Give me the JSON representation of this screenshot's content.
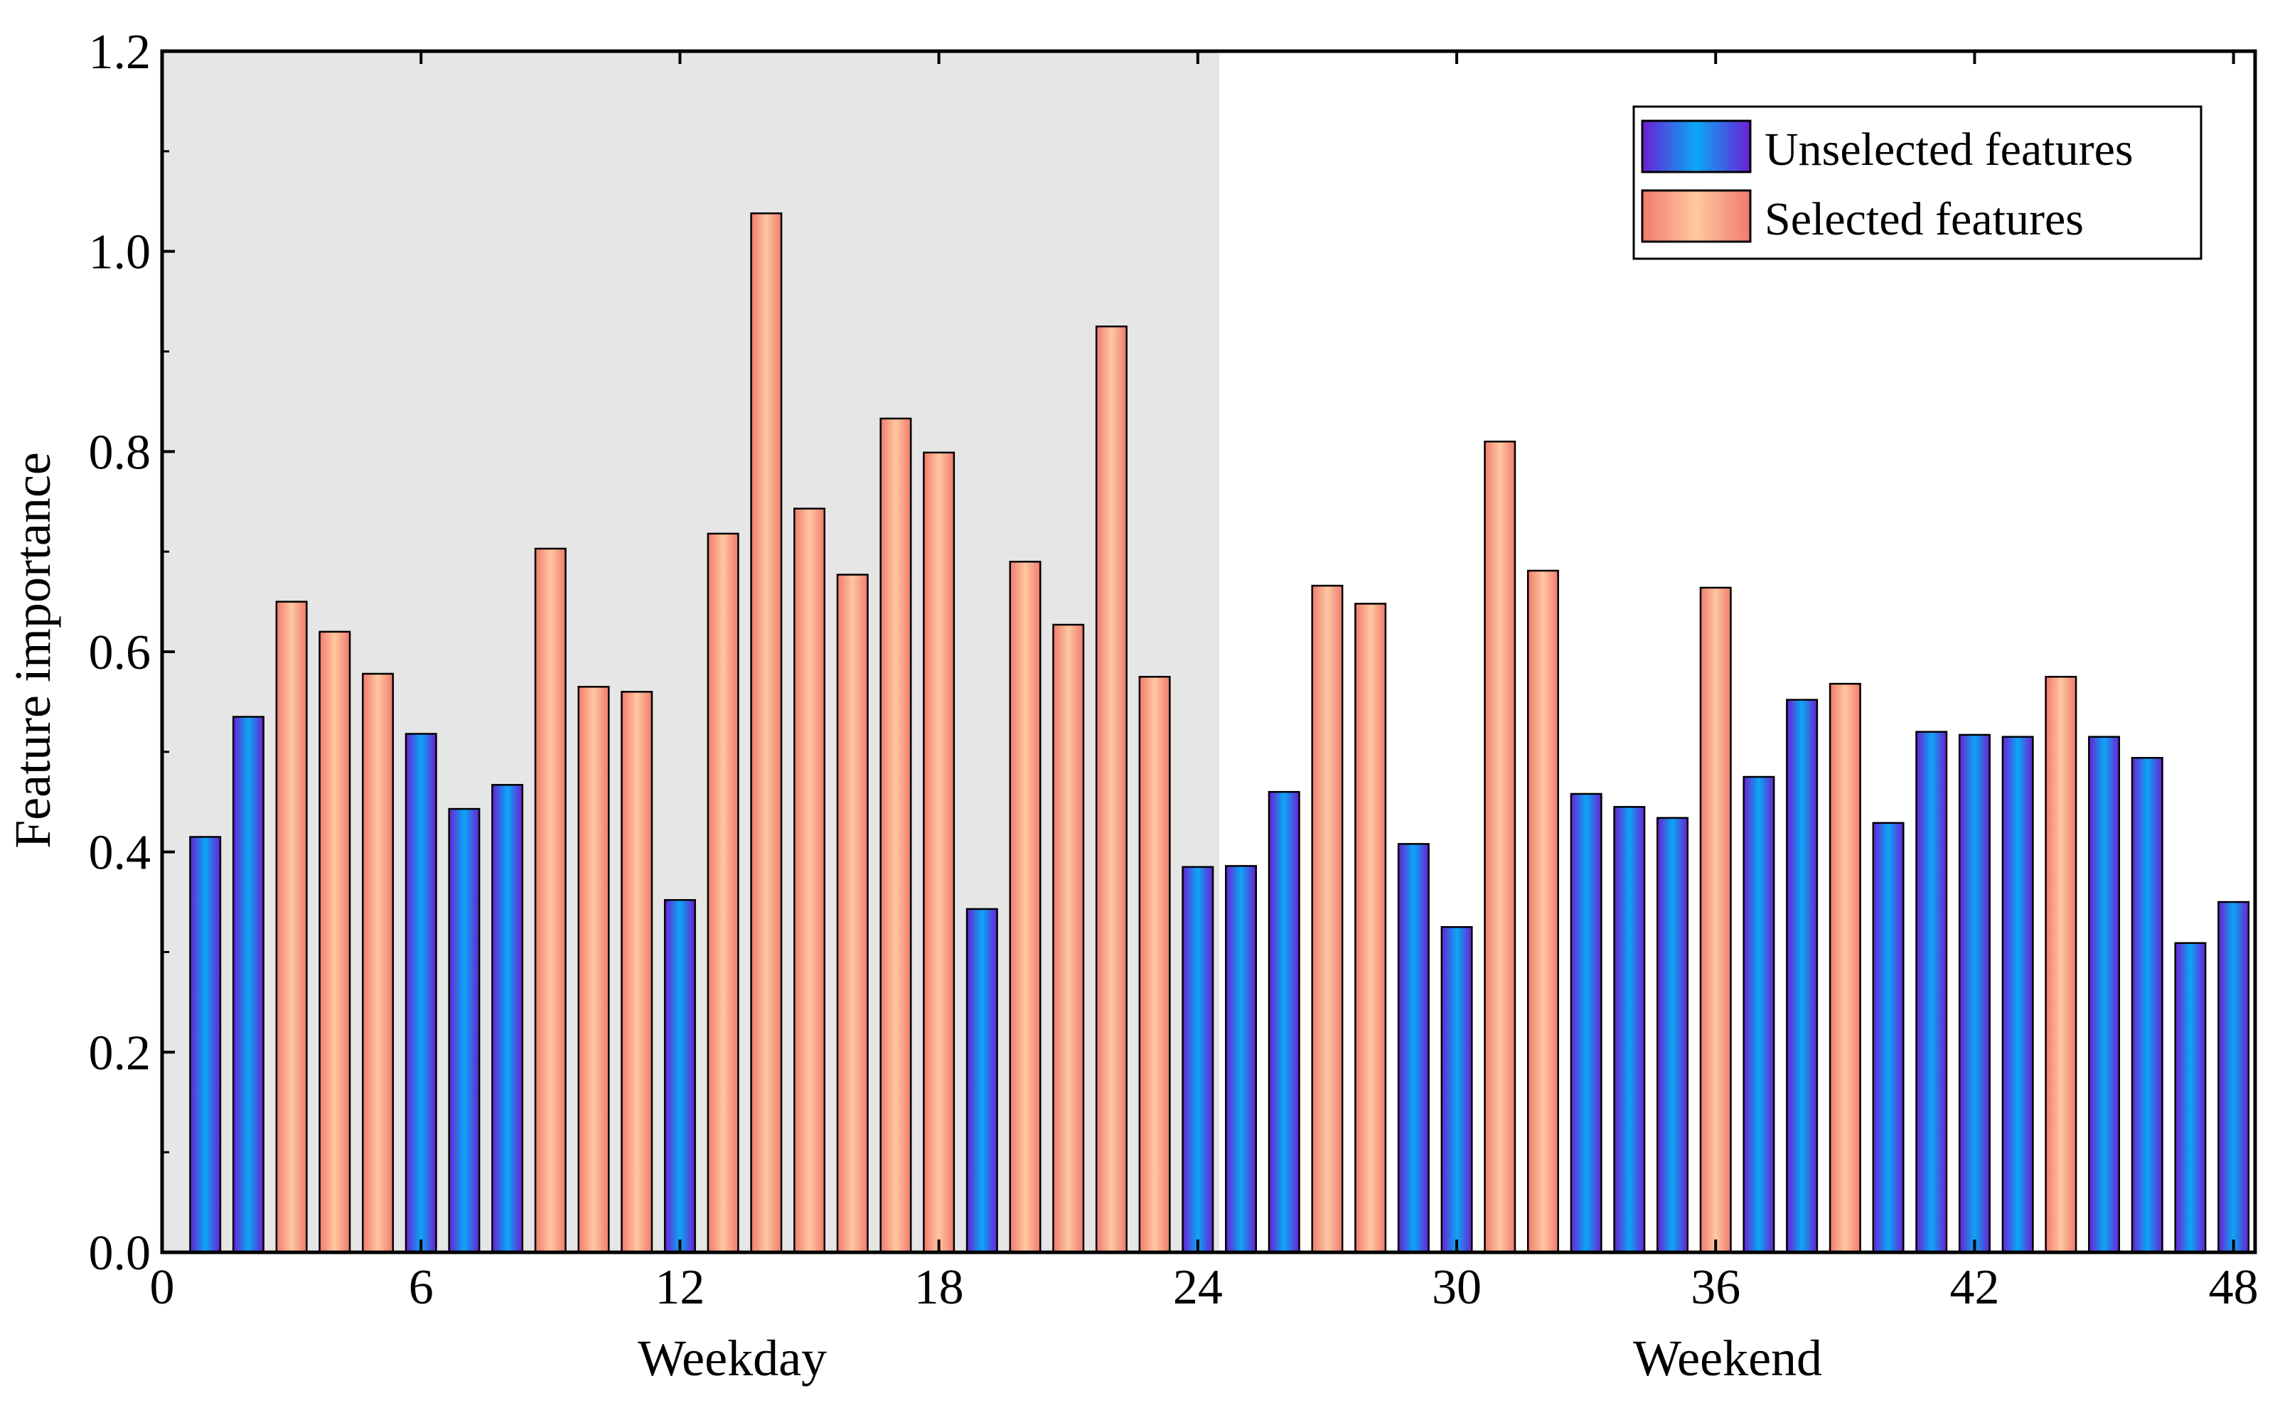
{
  "chart_data": {
    "type": "bar",
    "title": "",
    "xlabel": "",
    "ylabel": "Feature importance",
    "xlim": [
      0,
      48.5
    ],
    "ylim": [
      0,
      1.2
    ],
    "x_ticks": [
      "0",
      "6",
      "12",
      "18",
      "24",
      "30",
      "36",
      "42",
      "48"
    ],
    "y_ticks": [
      "0.0",
      "0.2",
      "0.4",
      "0.6",
      "0.8",
      "1.0",
      "1.2"
    ],
    "region_labels": {
      "weekday": "Weekday",
      "weekend": "Weekend"
    },
    "shaded_region": {
      "from": 0,
      "to": 24.5,
      "color": "#e6e6e6"
    },
    "legend": {
      "position": "top-right",
      "entries": [
        {
          "key": "unselected",
          "label": "Unselected features"
        },
        {
          "key": "selected",
          "label": "Selected features"
        }
      ]
    },
    "colors": {
      "unselected_edge": "#6b1fd4",
      "unselected_center": "#0aa8f5",
      "selected_edge": "#f07a6e",
      "selected_center": "#ffc8a0",
      "bar_stroke": "#000000"
    },
    "x": [
      1,
      2,
      3,
      4,
      5,
      6,
      7,
      8,
      9,
      10,
      11,
      12,
      13,
      14,
      15,
      16,
      17,
      18,
      19,
      20,
      21,
      22,
      23,
      24,
      25,
      26,
      27,
      28,
      29,
      30,
      31,
      32,
      33,
      34,
      35,
      36,
      37,
      38,
      39,
      40,
      41,
      42,
      43,
      44,
      45,
      46,
      47,
      48
    ],
    "values": [
      0.415,
      0.535,
      0.65,
      0.62,
      0.578,
      0.518,
      0.443,
      0.467,
      0.703,
      0.565,
      0.56,
      0.352,
      0.718,
      1.038,
      0.743,
      0.677,
      0.833,
      0.799,
      0.343,
      0.69,
      0.627,
      0.925,
      0.575,
      0.385,
      0.386,
      0.46,
      0.666,
      0.648,
      0.408,
      0.325,
      0.81,
      0.681,
      0.458,
      0.445,
      0.434,
      0.664,
      0.475,
      0.552,
      0.568,
      0.429,
      0.52,
      0.517,
      0.515,
      0.575,
      0.515,
      0.494,
      0.309,
      0.35
    ],
    "selected": [
      false,
      false,
      true,
      true,
      true,
      false,
      false,
      false,
      true,
      true,
      true,
      false,
      true,
      true,
      true,
      true,
      true,
      true,
      false,
      true,
      true,
      true,
      true,
      false,
      false,
      false,
      true,
      true,
      false,
      false,
      true,
      true,
      false,
      false,
      false,
      true,
      false,
      false,
      true,
      false,
      false,
      false,
      false,
      true,
      false,
      false,
      false,
      false
    ]
  }
}
